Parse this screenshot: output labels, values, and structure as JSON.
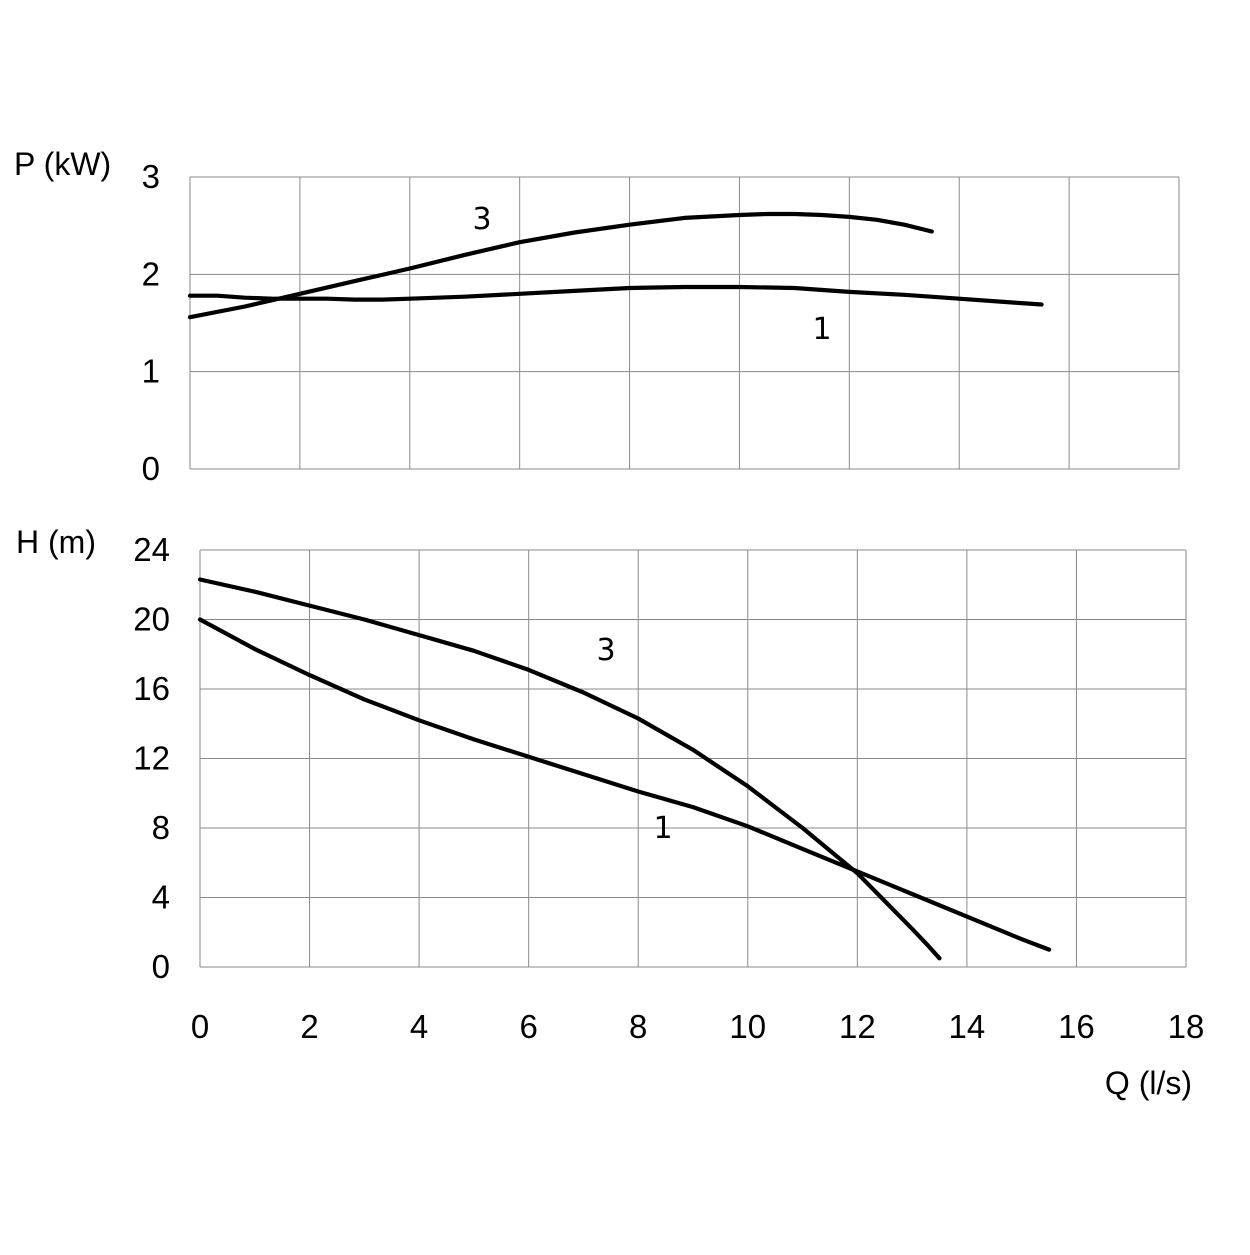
{
  "chart_data": [
    {
      "type": "line",
      "ylabel": "P (kW)",
      "xlabel": "",
      "xlim": [
        0,
        18
      ],
      "ylim": [
        0,
        3
      ],
      "xticks": [
        0,
        2,
        4,
        6,
        8,
        10,
        12,
        14,
        16,
        18
      ],
      "yticks": [
        0,
        1,
        2,
        3
      ],
      "grid": true,
      "series": [
        {
          "name": "1",
          "x": [
            0,
            0.5,
            1,
            1.5,
            2,
            2.5,
            3,
            3.5,
            4,
            5,
            6,
            7,
            8,
            9,
            10,
            11,
            12,
            13,
            14,
            15,
            15.5
          ],
          "y": [
            1.78,
            1.78,
            1.76,
            1.75,
            1.75,
            1.75,
            1.74,
            1.74,
            1.75,
            1.77,
            1.8,
            1.83,
            1.86,
            1.87,
            1.87,
            1.86,
            1.82,
            1.79,
            1.75,
            1.71,
            1.69
          ]
        },
        {
          "name": "3",
          "x": [
            0,
            1,
            2,
            3,
            4,
            5,
            6,
            7,
            8,
            9,
            10,
            10.5,
            11,
            11.5,
            12,
            12.5,
            13,
            13.5
          ],
          "y": [
            1.56,
            1.67,
            1.8,
            1.93,
            2.06,
            2.2,
            2.33,
            2.43,
            2.51,
            2.58,
            2.61,
            2.62,
            2.62,
            2.61,
            2.59,
            2.56,
            2.51,
            2.44
          ]
        }
      ]
    },
    {
      "type": "line",
      "ylabel": "H (m)",
      "xlabel": "Q (l/s)",
      "xlim": [
        0,
        18
      ],
      "ylim": [
        0,
        24
      ],
      "xticks": [
        0,
        2,
        4,
        6,
        8,
        10,
        12,
        14,
        16,
        18
      ],
      "yticks": [
        0,
        4,
        8,
        12,
        16,
        20,
        24
      ],
      "grid": true,
      "series": [
        {
          "name": "1",
          "x": [
            0,
            1,
            2,
            3,
            4,
            5,
            6,
            7,
            8,
            9,
            10,
            11,
            12,
            13,
            14,
            15,
            15.5
          ],
          "y": [
            20,
            18.3,
            16.8,
            15.4,
            14.2,
            13.1,
            12.1,
            11.1,
            10.1,
            9.2,
            8.1,
            6.8,
            5.5,
            4.2,
            2.9,
            1.6,
            1.0
          ]
        },
        {
          "name": "3",
          "x": [
            0,
            1,
            2,
            3,
            4,
            5,
            6,
            7,
            8,
            9,
            10,
            11,
            12,
            12.5,
            13,
            13.3,
            13.5
          ],
          "y": [
            22.3,
            21.6,
            20.8,
            20,
            19.1,
            18.2,
            17.1,
            15.8,
            14.3,
            12.5,
            10.4,
            8.0,
            5.4,
            3.8,
            2.2,
            1.2,
            0.5
          ]
        }
      ]
    }
  ]
}
